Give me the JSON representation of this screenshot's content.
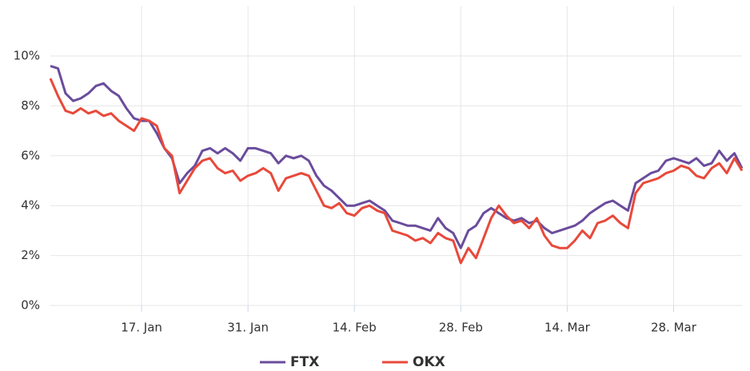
{
  "chart_data": {
    "type": "line",
    "x": [
      5,
      6,
      7,
      8,
      9,
      10,
      11,
      12,
      13,
      14,
      15,
      16,
      17,
      18,
      19,
      20,
      21,
      22,
      23,
      24,
      25,
      26,
      27,
      28,
      29,
      30,
      31,
      32,
      33,
      34,
      35,
      36,
      37,
      38,
      39,
      40,
      41,
      42,
      43,
      44,
      45,
      46,
      47,
      48,
      49,
      50,
      51,
      52,
      53,
      54,
      55,
      56,
      57,
      58,
      59,
      60,
      61,
      62,
      63,
      64,
      65,
      66,
      67,
      68,
      69,
      70,
      71,
      72,
      73,
      74,
      75,
      76,
      77,
      78,
      79,
      80,
      81,
      82,
      83,
      84,
      85,
      86,
      87,
      88,
      89,
      90,
      91,
      92,
      93,
      94,
      95,
      96
    ],
    "series": [
      {
        "name": "FTX",
        "color": "#6a4c9c",
        "values": [
          9.6,
          9.5,
          8.5,
          8.2,
          8.3,
          8.5,
          8.8,
          8.9,
          8.6,
          8.4,
          7.9,
          7.5,
          7.4,
          7.4,
          6.9,
          6.3,
          5.9,
          4.9,
          5.3,
          5.6,
          6.2,
          6.3,
          6.1,
          6.3,
          6.1,
          5.8,
          6.3,
          6.3,
          6.2,
          6.1,
          5.7,
          6.0,
          5.9,
          6.0,
          5.8,
          5.2,
          4.8,
          4.6,
          4.3,
          4.0,
          4.0,
          4.1,
          4.2,
          4.0,
          3.8,
          3.4,
          3.3,
          3.2,
          3.2,
          3.1,
          3.0,
          3.5,
          3.1,
          2.9,
          2.3,
          3.0,
          3.2,
          3.7,
          3.9,
          3.7,
          3.5,
          3.4,
          3.5,
          3.3,
          3.4,
          3.1,
          2.9,
          3.0,
          3.1,
          3.2,
          3.4,
          3.7,
          3.9,
          4.1,
          4.2,
          4.0,
          3.8,
          4.9,
          5.1,
          5.3,
          5.4,
          5.8,
          5.9,
          5.8,
          5.7,
          5.9,
          5.6,
          5.7,
          6.2,
          5.8,
          6.1,
          5.5
        ]
      },
      {
        "name": "OKX",
        "color": "#e8493a",
        "values": [
          9.1,
          8.4,
          7.8,
          7.7,
          7.9,
          7.7,
          7.8,
          7.6,
          7.7,
          7.4,
          7.2,
          7.0,
          7.5,
          7.4,
          7.2,
          6.3,
          6.0,
          4.5,
          5.0,
          5.5,
          5.8,
          5.9,
          5.5,
          5.3,
          5.4,
          5.0,
          5.2,
          5.3,
          5.5,
          5.3,
          4.6,
          5.1,
          5.2,
          5.3,
          5.2,
          4.6,
          4.0,
          3.9,
          4.1,
          3.7,
          3.6,
          3.9,
          4.0,
          3.8,
          3.7,
          3.0,
          2.9,
          2.8,
          2.6,
          2.7,
          2.5,
          2.9,
          2.7,
          2.6,
          1.7,
          2.3,
          1.9,
          2.7,
          3.5,
          4.0,
          3.6,
          3.3,
          3.4,
          3.1,
          3.5,
          2.8,
          2.4,
          2.3,
          2.3,
          2.6,
          3.0,
          2.7,
          3.3,
          3.4,
          3.6,
          3.3,
          3.1,
          4.5,
          4.9,
          5.0,
          5.1,
          5.3,
          5.4,
          5.6,
          5.5,
          5.2,
          5.1,
          5.5,
          5.7,
          5.3,
          5.9,
          5.4
        ]
      }
    ],
    "xlim": [
      5,
      96
    ],
    "xticks": [
      {
        "value": 17,
        "label": "17. Jan"
      },
      {
        "value": 31,
        "label": "31. Jan"
      },
      {
        "value": 45,
        "label": "14. Feb"
      },
      {
        "value": 59,
        "label": "28. Feb"
      },
      {
        "value": 73,
        "label": "14. Mar"
      },
      {
        "value": 87,
        "label": "28. Mar"
      }
    ],
    "ylim": [
      0,
      12
    ],
    "yticks": [
      {
        "value": 0,
        "label": "0%"
      },
      {
        "value": 2,
        "label": "2%"
      },
      {
        "value": 4,
        "label": "4%"
      },
      {
        "value": 6,
        "label": "6%"
      },
      {
        "value": 8,
        "label": "8%"
      },
      {
        "value": 10,
        "label": "10%"
      }
    ],
    "grid": true,
    "legend": "bottom"
  }
}
